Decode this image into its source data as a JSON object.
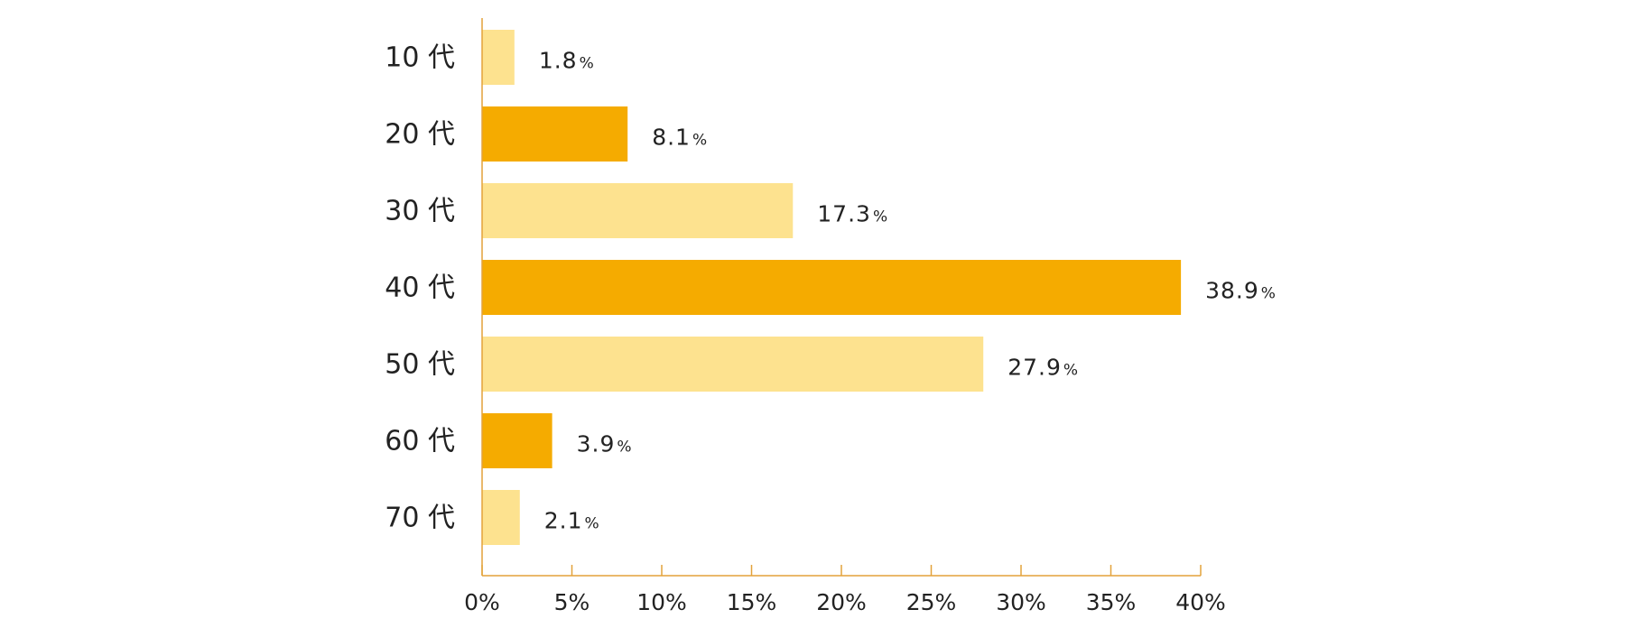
{
  "chart_data": {
    "type": "bar",
    "orientation": "horizontal",
    "title": "",
    "xlabel": "",
    "ylabel": "",
    "categories": [
      "10 代",
      "20 代",
      "30 代",
      "40 代",
      "50 代",
      "60 代",
      "70 代"
    ],
    "values": [
      1.8,
      8.1,
      17.3,
      38.9,
      27.9,
      3.9,
      2.1
    ],
    "value_labels": [
      "1.8",
      "8.1",
      "17.3",
      "38.9",
      "27.9",
      "3.9",
      "2.1"
    ],
    "value_unit": "%",
    "xlim": [
      0,
      40
    ],
    "x_ticks": [
      0,
      5,
      10,
      15,
      20,
      25,
      30,
      35,
      40
    ],
    "x_tick_labels": [
      "0%",
      "5%",
      "10%",
      "15%",
      "20%",
      "25%",
      "30%",
      "35%",
      "40%"
    ],
    "grid": false,
    "legend": "none",
    "colors": {
      "light": "#FDE28F",
      "dark": "#F5AB00",
      "axis": "#E3A23A"
    },
    "bar_color_pattern": [
      "light",
      "dark",
      "light",
      "dark",
      "light",
      "dark",
      "light"
    ]
  }
}
